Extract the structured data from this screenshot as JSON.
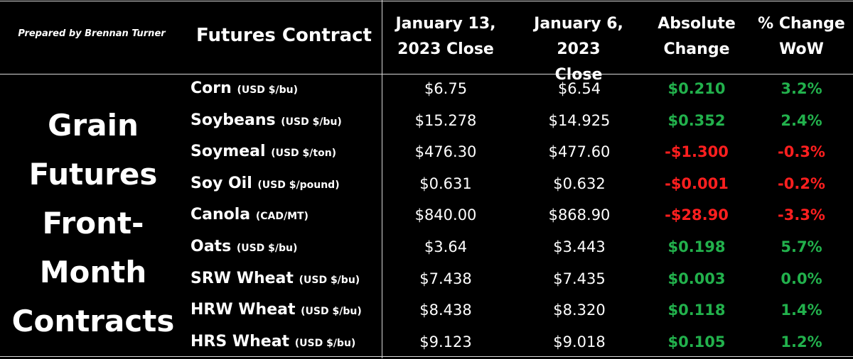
{
  "prepared_by": "Prepared by Brennan Turner",
  "side_label": "Grain\nFutures\nFront-\nMonth\nContracts",
  "headers": {
    "contract": "Futures Contract",
    "jan13": "January 13,\n2023 Close",
    "jan6": "January 6, 2023\nClose",
    "abs": "Absolute\nChange",
    "pct": "% Change\nWoW"
  },
  "colors": {
    "positive": "#22b14c",
    "negative": "#ff1f1f"
  },
  "chart_data": {
    "type": "table",
    "columns": [
      "Futures Contract",
      "January 13, 2023 Close",
      "January 6, 2023 Close",
      "Absolute Change",
      "% Change WoW"
    ],
    "rows": [
      {
        "name": "Corn",
        "unit": "(USD $/bu)",
        "jan13": "$6.75",
        "jan6": "$6.54",
        "abs": "$0.210",
        "pct": "3.2%",
        "dir": "pos"
      },
      {
        "name": "Soybeans",
        "unit": "(USD $/bu)",
        "jan13": "$15.278",
        "jan6": "$14.925",
        "abs": "$0.352",
        "pct": "2.4%",
        "dir": "pos"
      },
      {
        "name": "Soymeal",
        "unit": "(USD $/ton)",
        "jan13": "$476.30",
        "jan6": "$477.60",
        "abs": "-$1.300",
        "pct": "-0.3%",
        "dir": "neg"
      },
      {
        "name": "Soy Oil",
        "unit": "(USD $/pound)",
        "jan13": "$0.631",
        "jan6": "$0.632",
        "abs": "-$0.001",
        "pct": "-0.2%",
        "dir": "neg"
      },
      {
        "name": "Canola",
        "unit": "(CAD/MT)",
        "jan13": "$840.00",
        "jan6": "$868.90",
        "abs": "-$28.90",
        "pct": "-3.3%",
        "dir": "neg"
      },
      {
        "name": "Oats",
        "unit": "(USD $/bu)",
        "jan13": "$3.64",
        "jan6": "$3.443",
        "abs": "$0.198",
        "pct": "5.7%",
        "dir": "pos"
      },
      {
        "name": "SRW Wheat",
        "unit": "(USD $/bu)",
        "jan13": "$7.438",
        "jan6": "$7.435",
        "abs": "$0.003",
        "pct": "0.0%",
        "dir": "pos"
      },
      {
        "name": "HRW Wheat",
        "unit": "(USD $/bu)",
        "jan13": "$8.438",
        "jan6": "$8.320",
        "abs": "$0.118",
        "pct": "1.4%",
        "dir": "pos"
      },
      {
        "name": "HRS Wheat",
        "unit": "(USD $/bu)",
        "jan13": "$9.123",
        "jan6": "$9.018",
        "abs": "$0.105",
        "pct": "1.2%",
        "dir": "pos"
      }
    ]
  }
}
